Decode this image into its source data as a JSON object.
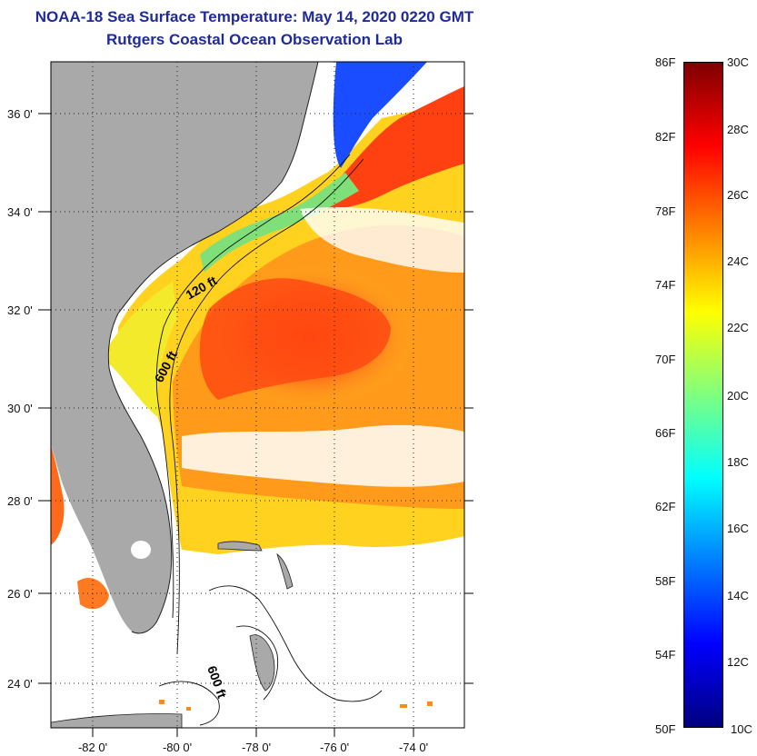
{
  "header": {
    "title": "NOAA-18 Sea Surface Temperature:  May 14, 2020 0220 GMT",
    "subtitle": "Rutgers Coastal Ocean Observation Lab"
  },
  "map": {
    "lat_ticks": [
      "36 0'",
      "34 0'",
      "32 0'",
      "30 0'",
      "28 0'",
      "26 0'",
      "24 0'"
    ],
    "lon_ticks": [
      "-82 0'",
      "-80 0'",
      "-78 0'",
      "-76 0'",
      "-74 0'"
    ],
    "lat_range": [
      23,
      37.1
    ],
    "lon_range": [
      -83,
      -72.8
    ],
    "contour_labels": {
      "c120": "120 ft",
      "c600": "600 ft",
      "c600b": "600 ft"
    },
    "land_color": "#a9a9a9",
    "no_data_color": "#ffffff"
  },
  "colorbar": {
    "fahrenheit_labels": [
      "86F",
      "82F",
      "78F",
      "74F",
      "70F",
      "66F",
      "62F",
      "58F",
      "54F",
      "50F"
    ],
    "celsius_labels": [
      "30C",
      "28C",
      "26C",
      "24C",
      "22C",
      "20C",
      "18C",
      "16C",
      "14C",
      "12C",
      "10C"
    ],
    "range_celsius": [
      10,
      30
    ],
    "colormap": "jet",
    "colors": [
      "#00007f",
      "#0000ff",
      "#007fff",
      "#00ffff",
      "#7fff7f",
      "#ffff00",
      "#ff7f00",
      "#ff0000",
      "#7f0000"
    ]
  }
}
